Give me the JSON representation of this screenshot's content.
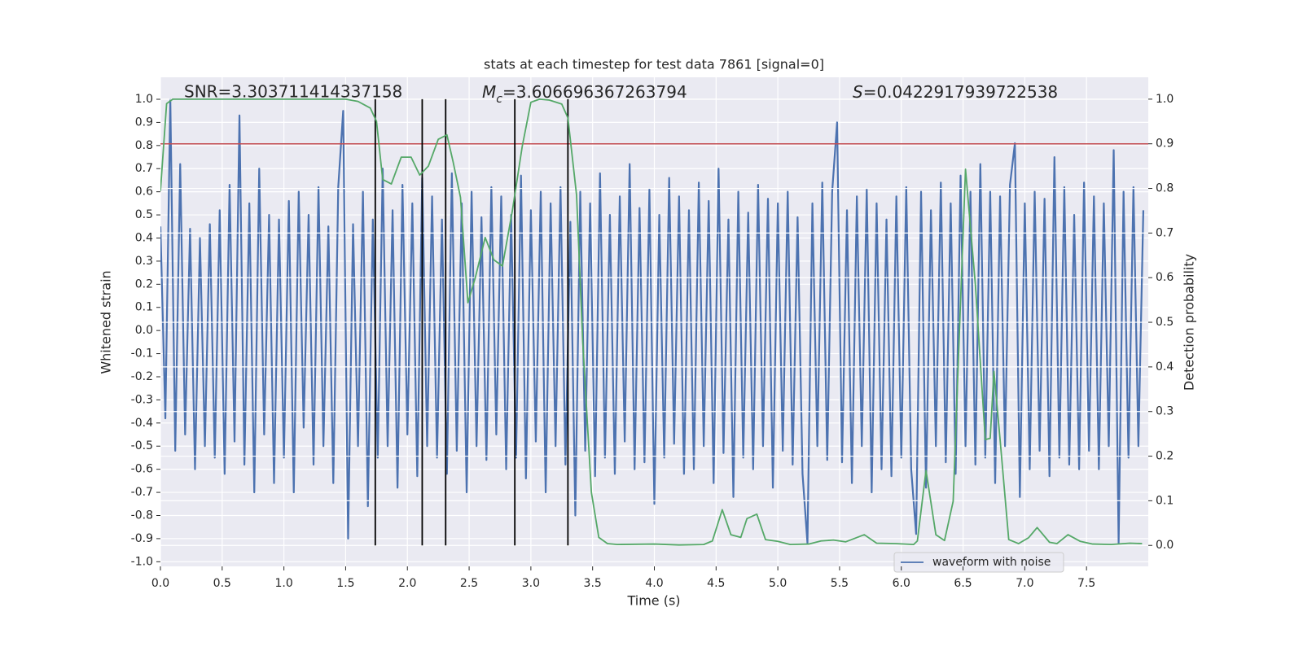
{
  "chart_data": {
    "type": "line",
    "title": "stats at each timestep for test data 7861 [signal=0]",
    "xlabel": "Time (s)",
    "ylabel": "Whitened strain",
    "y2label": "Detection probability",
    "xlim": [
      0,
      8
    ],
    "ylim": [
      -1.02,
      1.095
    ],
    "y2lim": [
      -0.047,
      1.049
    ],
    "xticks": [
      {
        "value": 0,
        "label": "0.0"
      },
      0.5,
      {
        "value": 1,
        "label": "1.0"
      },
      1.5,
      {
        "value": 2,
        "label": "2.0"
      },
      2.5,
      {
        "value": 3,
        "label": "3.0"
      },
      3.5,
      {
        "value": 4,
        "label": "4.0"
      },
      4.5,
      {
        "value": 5,
        "label": "5.0"
      },
      5.5,
      {
        "value": 6,
        "label": "6.0"
      },
      6.5,
      {
        "value": 7,
        "label": "7.0"
      },
      7.5
    ],
    "yticks": [
      {
        "value": -1,
        "label": "-1.0"
      },
      -0.9,
      -0.8,
      -0.7,
      -0.6,
      -0.5,
      -0.4,
      -0.3,
      -0.2,
      -0.1,
      {
        "value": 0,
        "label": "0.0"
      },
      0.1,
      0.2,
      0.3,
      0.4,
      0.5,
      0.6,
      0.7,
      0.8,
      0.9,
      {
        "value": 1,
        "label": "1.0"
      }
    ],
    "y2ticks": [
      {
        "value": 0,
        "label": "0.0"
      },
      0.1,
      0.2,
      0.3,
      0.4,
      0.5,
      0.6,
      0.7,
      0.8,
      0.9,
      {
        "value": 1,
        "label": "1.0"
      }
    ],
    "grid": true,
    "legend": "lower right",
    "series": [
      {
        "name": "waveform with noise",
        "color": "#4c72b0",
        "x": [
          0,
          0.04,
          0.08,
          0.12,
          0.16,
          0.2,
          0.24,
          0.28,
          0.32,
          0.36,
          0.4,
          0.44,
          0.48,
          0.52,
          0.56,
          0.6,
          0.64,
          0.68,
          0.72,
          0.76,
          0.8,
          0.84,
          0.88,
          0.92,
          0.96,
          1,
          1.04,
          1.08,
          1.12,
          1.16,
          1.2,
          1.24,
          1.28,
          1.32,
          1.36,
          1.4,
          1.44,
          1.48,
          1.52,
          1.56,
          1.6,
          1.64,
          1.68,
          1.72,
          1.76,
          1.8,
          1.84,
          1.88,
          1.92,
          1.96,
          2,
          2.04,
          2.08,
          2.12,
          2.16,
          2.2,
          2.24,
          2.28,
          2.32,
          2.36,
          2.4,
          2.44,
          2.48,
          2.52,
          2.56,
          2.6,
          2.64,
          2.68,
          2.72,
          2.76,
          2.8,
          2.84,
          2.88,
          2.92,
          2.96,
          3,
          3.04,
          3.08,
          3.12,
          3.16,
          3.2,
          3.24,
          3.28,
          3.32,
          3.36,
          3.4,
          3.44,
          3.48,
          3.52,
          3.56,
          3.6,
          3.64,
          3.68,
          3.72,
          3.76,
          3.8,
          3.84,
          3.88,
          3.92,
          3.96,
          4,
          4.04,
          4.08,
          4.12,
          4.16,
          4.2,
          4.24,
          4.28,
          4.32,
          4.36,
          4.4,
          4.44,
          4.48,
          4.52,
          4.56,
          4.6,
          4.64,
          4.68,
          4.72,
          4.76,
          4.8,
          4.84,
          4.88,
          4.92,
          4.96,
          5,
          5.04,
          5.08,
          5.12,
          5.16,
          5.2,
          5.24,
          5.28,
          5.32,
          5.36,
          5.4,
          5.44,
          5.48,
          5.52,
          5.56,
          5.6,
          5.64,
          5.68,
          5.72,
          5.76,
          5.8,
          5.84,
          5.88,
          5.92,
          5.96,
          6,
          6.04,
          6.08,
          6.12,
          6.16,
          6.2,
          6.24,
          6.28,
          6.32,
          6.36,
          6.4,
          6.44,
          6.48,
          6.52,
          6.56,
          6.6,
          6.64,
          6.68,
          6.72,
          6.76,
          6.8,
          6.84,
          6.88,
          6.92,
          6.96,
          7,
          7.04,
          7.08,
          7.12,
          7.16,
          7.2,
          7.24,
          7.28,
          7.32,
          7.36,
          7.4,
          7.44,
          7.48,
          7.52,
          7.56,
          7.6,
          7.64,
          7.68,
          7.72,
          7.76,
          7.8,
          7.84,
          7.88,
          7.92,
          7.96
        ],
        "values": [
          0.45,
          -0.38,
          1.0,
          -0.52,
          0.72,
          -0.45,
          0.44,
          -0.6,
          0.4,
          -0.5,
          0.46,
          -0.55,
          0.52,
          -0.62,
          0.63,
          -0.48,
          0.93,
          -0.58,
          0.55,
          -0.7,
          0.7,
          -0.45,
          0.5,
          -0.66,
          0.48,
          -0.55,
          0.56,
          -0.7,
          0.6,
          -0.42,
          0.5,
          -0.58,
          0.62,
          -0.5,
          0.45,
          -0.66,
          0.62,
          0.95,
          -0.9,
          0.46,
          -0.5,
          0.6,
          -0.76,
          0.48,
          -0.55,
          0.7,
          -0.5,
          0.52,
          -0.68,
          0.63,
          -0.45,
          0.55,
          -0.63,
          0.66,
          -0.5,
          0.58,
          -0.55,
          0.48,
          -0.62,
          0.68,
          -0.52,
          0.55,
          -0.7,
          0.6,
          -0.5,
          0.49,
          -0.56,
          0.62,
          -0.45,
          0.58,
          -0.6,
          0.5,
          -0.55,
          0.67,
          -0.64,
          0.52,
          -0.48,
          0.6,
          -0.7,
          0.55,
          -0.5,
          0.62,
          -0.58,
          0.47,
          -0.8,
          0.6,
          -0.52,
          0.55,
          -0.63,
          0.68,
          -0.55,
          0.5,
          -0.62,
          0.58,
          -0.48,
          0.72,
          -0.6,
          0.53,
          -0.57,
          0.61,
          -0.75,
          0.5,
          -0.55,
          0.66,
          -0.49,
          0.58,
          -0.62,
          0.52,
          -0.6,
          0.64,
          -0.5,
          0.56,
          -0.66,
          0.7,
          -0.53,
          0.48,
          -0.72,
          0.6,
          -0.55,
          0.51,
          -0.6,
          0.63,
          -0.5,
          0.57,
          -0.68,
          0.55,
          -0.52,
          0.6,
          -0.58,
          0.49,
          -0.62,
          -0.92,
          0.55,
          -0.5,
          0.64,
          -0.56,
          0.6,
          0.9,
          -0.57,
          0.52,
          -0.66,
          0.58,
          -0.5,
          0.61,
          -0.7,
          0.55,
          -0.6,
          0.48,
          -0.63,
          0.58,
          -0.55,
          0.62,
          -0.6,
          -0.88,
          0.6,
          -0.68,
          0.52,
          -0.5,
          0.64,
          -0.57,
          0.55,
          -0.62,
          0.67,
          -0.5,
          0.6,
          -0.58,
          0.72,
          -0.55,
          0.6,
          -0.66,
          0.58,
          -0.5,
          0.63,
          0.81,
          -0.72,
          0.55,
          -0.6,
          0.6,
          -0.52,
          0.57,
          -0.63,
          0.75,
          -0.55,
          0.62,
          -0.58,
          0.5,
          -0.6,
          0.64,
          -0.52,
          0.58,
          -0.6,
          0.55,
          -0.5,
          0.78,
          -0.92,
          0.6,
          -0.55,
          0.62,
          -0.5,
          0.52
        ]
      },
      {
        "color": "#55a868",
        "axis": "y2",
        "x": [
          0,
          0.05,
          0.1,
          0.3,
          0.5,
          0.8,
          1.0,
          1.2,
          1.4,
          1.5,
          1.6,
          1.7,
          1.75,
          1.8,
          1.87,
          1.95,
          2.03,
          2.1,
          2.17,
          2.25,
          2.32,
          2.37,
          2.43,
          2.49,
          2.55,
          2.63,
          2.7,
          2.77,
          2.85,
          2.93,
          3.0,
          3.07,
          3.15,
          3.25,
          3.3,
          3.37,
          3.42,
          3.49,
          3.55,
          3.62,
          3.7,
          4.0,
          4.2,
          4.4,
          4.47,
          4.55,
          4.62,
          4.7,
          4.75,
          4.83,
          4.9,
          5.0,
          5.1,
          5.25,
          5.35,
          5.45,
          5.55,
          5.7,
          5.8,
          5.95,
          6.1,
          6.13,
          6.2,
          6.28,
          6.35,
          6.42,
          6.46,
          6.52,
          6.6,
          6.68,
          6.72,
          6.75,
          6.8,
          6.87,
          6.95,
          7.03,
          7.1,
          7.2,
          7.26,
          7.35,
          7.45,
          7.55,
          7.7,
          7.85,
          7.95
        ],
        "values": [
          0.794,
          0.99,
          1.0,
          1.0,
          1.0,
          1.0,
          1.0,
          1.0,
          1.0,
          1.0,
          0.995,
          0.98,
          0.95,
          0.82,
          0.81,
          0.87,
          0.87,
          0.83,
          0.85,
          0.91,
          0.92,
          0.86,
          0.78,
          0.544,
          0.6,
          0.69,
          0.64,
          0.626,
          0.75,
          0.894,
          0.993,
          1.0,
          0.998,
          0.989,
          0.958,
          0.785,
          0.456,
          0.119,
          0.018,
          0.004,
          0.002,
          0.003,
          0.001,
          0.002,
          0.01,
          0.08,
          0.024,
          0.018,
          0.06,
          0.07,
          0.013,
          0.009,
          0.002,
          0.003,
          0.01,
          0.012,
          0.008,
          0.024,
          0.005,
          0.004,
          0.002,
          0.01,
          0.168,
          0.024,
          0.011,
          0.099,
          0.4,
          0.843,
          0.584,
          0.237,
          0.24,
          0.39,
          0.237,
          0.013,
          0.004,
          0.017,
          0.04,
          0.007,
          0.004,
          0.024,
          0.009,
          0.003,
          0.002,
          0.005,
          0.004
        ]
      }
    ],
    "threshold": {
      "value": 0.9,
      "axis": "y2",
      "color": "#c44e52"
    },
    "vlines": {
      "x": [
        1.74,
        2.12,
        2.31,
        2.87,
        3.3
      ],
      "ymin": 0,
      "ymax": 1,
      "axis": "y2",
      "color": "#000000"
    },
    "annotations": [
      {
        "text": "SNR=3.303711414337158"
      },
      {
        "symbol": "M",
        "subscript": "c",
        "text": "=3.606696367263794"
      },
      {
        "symbol": "S",
        "text": "=0.0422917939722538"
      }
    ]
  }
}
